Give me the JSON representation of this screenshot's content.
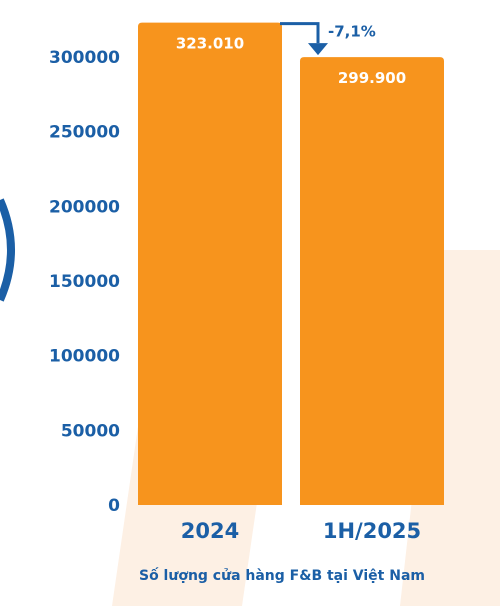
{
  "chart_data": {
    "type": "bar",
    "title": "Số lượng cửa hàng F&B tại Việt Nam",
    "categories": [
      "2024",
      "1H/2025"
    ],
    "values": [
      323010,
      299900
    ],
    "data_labels": [
      "323.010",
      "299.900"
    ],
    "y_ticks": [
      "0",
      "50000",
      "100000",
      "150000",
      "200000",
      "250000",
      "300000"
    ],
    "ylim": [
      0,
      320000
    ],
    "change_label": "-7,1%",
    "grid": false,
    "legend": "none",
    "colors": {
      "bar": "#f7941d",
      "text": "#1b5fa6",
      "arrow": "#1b5fa6",
      "bar_label": "#ffffff",
      "watermark": "#fdf0e4",
      "edge_shape": "#1b5fa6"
    }
  }
}
